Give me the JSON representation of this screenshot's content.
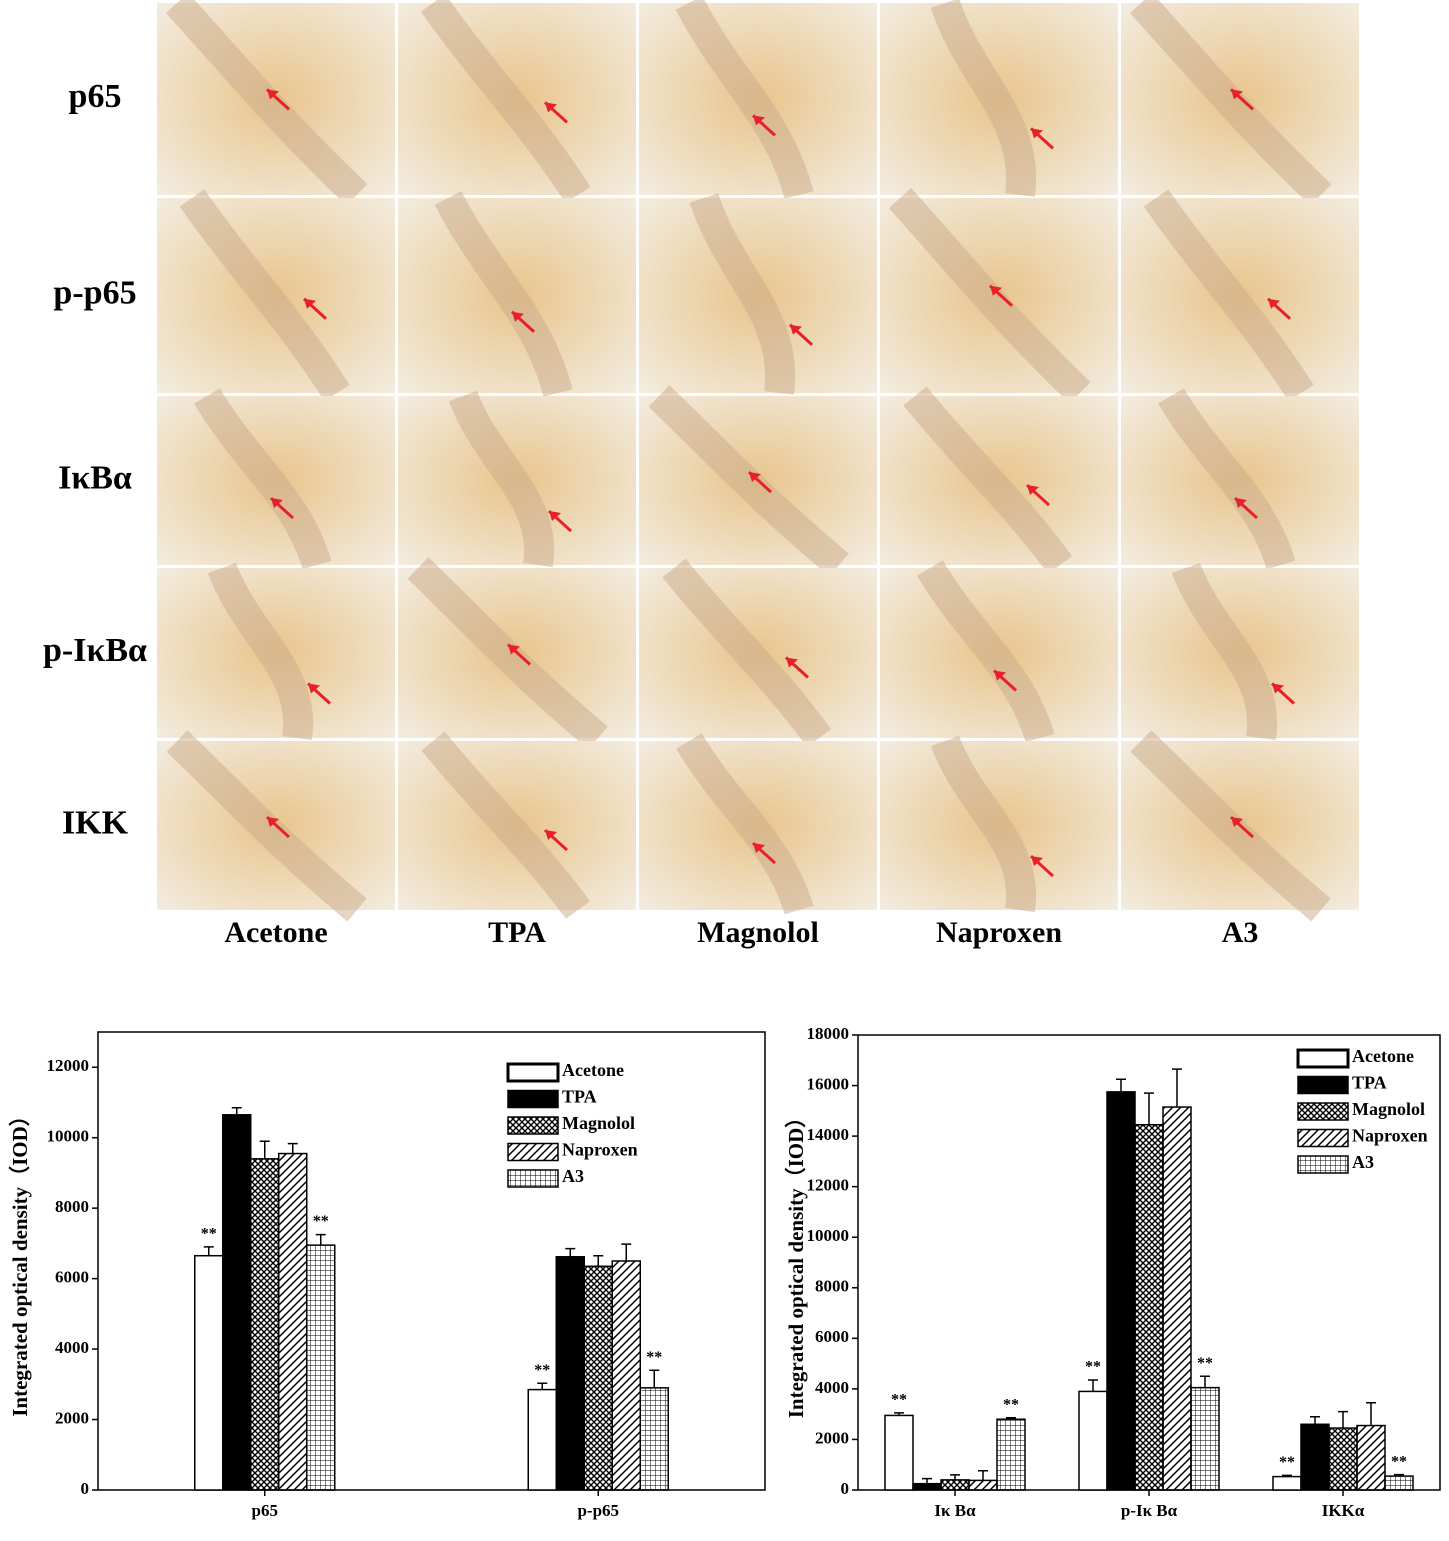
{
  "figure": {
    "rows": [
      "p65",
      "p-p65",
      "IκBα",
      "p-IκBα",
      "IKK"
    ],
    "columns": [
      "Acetone",
      "TPA",
      "Magnolol",
      "Naproxen",
      "A3"
    ]
  },
  "chart_data": [
    {
      "type": "bar",
      "y_label": "Integrated optical density（IOD）",
      "categories": [
        "p65",
        "p-p65"
      ],
      "ylim": [
        0,
        13000
      ],
      "yticks": [
        0,
        2000,
        4000,
        6000,
        8000,
        10000,
        12000
      ],
      "legend": "upper-right",
      "series": [
        {
          "name": "Acetone",
          "color": "#ffffff",
          "pattern": "none",
          "values": [
            6650,
            2850
          ],
          "errors": [
            250,
            180
          ],
          "marks": [
            "**",
            "**"
          ]
        },
        {
          "name": "TPA",
          "color": "#000000",
          "pattern": "none",
          "values": [
            10650,
            6620
          ],
          "errors": [
            200,
            230
          ]
        },
        {
          "name": "Magnolol",
          "color": "#000000",
          "pattern": "crosshatch",
          "values": [
            9400,
            6350
          ],
          "errors": [
            500,
            300
          ]
        },
        {
          "name": "Naproxen",
          "color": "#000000",
          "pattern": "diagonal",
          "values": [
            9550,
            6500
          ],
          "errors": [
            280,
            480
          ]
        },
        {
          "name": "A3",
          "color": "#000000",
          "pattern": "grid",
          "values": [
            6950,
            2900
          ],
          "errors": [
            300,
            500
          ],
          "marks": [
            "**",
            "**"
          ]
        }
      ]
    },
    {
      "type": "bar",
      "y_label": "Integrated optical density（IOD）",
      "categories": [
        "Iκ Bα",
        "p-Iκ Bα",
        "IKKα"
      ],
      "ylim": [
        0,
        18000
      ],
      "yticks": [
        0,
        2000,
        4000,
        6000,
        8000,
        10000,
        12000,
        14000,
        16000,
        18000
      ],
      "legend": "upper-right",
      "series": [
        {
          "name": "Acetone",
          "color": "#ffffff",
          "pattern": "none",
          "values": [
            2950,
            3900,
            530
          ],
          "errors": [
            100,
            450,
            50
          ],
          "marks": [
            "**",
            "**",
            "**"
          ]
        },
        {
          "name": "TPA",
          "color": "#000000",
          "pattern": "none",
          "values": [
            250,
            15750,
            2600
          ],
          "errors": [
            200,
            500,
            300
          ]
        },
        {
          "name": "Magnolol",
          "color": "#666666",
          "pattern": "crosshatch",
          "values": [
            400,
            14450,
            2450
          ],
          "errors": [
            200,
            1250,
            650
          ]
        },
        {
          "name": "Naproxen",
          "color": "#666666",
          "pattern": "diagonal",
          "values": [
            380,
            15150,
            2550
          ],
          "errors": [
            380,
            1500,
            900
          ]
        },
        {
          "name": "A3",
          "color": "#000000",
          "pattern": "grid",
          "values": [
            2800,
            4050,
            550
          ],
          "errors": [
            60,
            450,
            60
          ],
          "marks": [
            "**",
            "**",
            "**"
          ]
        }
      ]
    }
  ]
}
